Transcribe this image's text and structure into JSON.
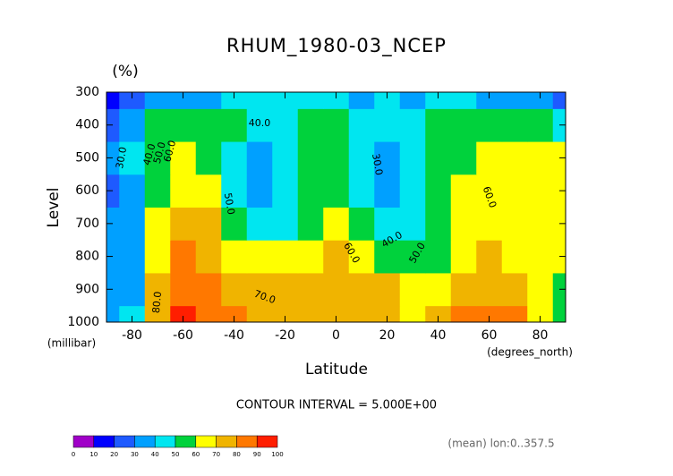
{
  "chart_data": {
    "type": "contour",
    "title": "RHUM_1980-03_NCEP",
    "units": "(%)",
    "y_label": "Level",
    "y_units": "(millibar)",
    "x_label": "Latitude",
    "x_units": "(degrees_north)",
    "contour_interval": "CONTOUR INTERVAL = 5.000E+00",
    "footnote": "(mean) lon:0..357.5",
    "x": [
      -90,
      -80,
      -70,
      -60,
      -50,
      -40,
      -30,
      -20,
      -10,
      0,
      10,
      20,
      30,
      40,
      50,
      60,
      70,
      80,
      90
    ],
    "y": [
      1000,
      900,
      800,
      700,
      600,
      500,
      400,
      300
    ],
    "z": [
      [
        30,
        40,
        75,
        92,
        85,
        80,
        75,
        75,
        75,
        72,
        72,
        70,
        65,
        70,
        82,
        85,
        80,
        65,
        50
      ],
      [
        30,
        35,
        70,
        88,
        83,
        75,
        72,
        72,
        75,
        75,
        72,
        70,
        62,
        68,
        78,
        78,
        75,
        68,
        55
      ],
      [
        30,
        35,
        62,
        80,
        78,
        68,
        60,
        60,
        65,
        72,
        62,
        55,
        50,
        58,
        65,
        70,
        68,
        65,
        60
      ],
      [
        30,
        35,
        60,
        75,
        72,
        58,
        45,
        45,
        52,
        62,
        52,
        42,
        48,
        55,
        62,
        62,
        65,
        62,
        60
      ],
      [
        28,
        35,
        58,
        68,
        62,
        45,
        38,
        40,
        50,
        57,
        45,
        35,
        45,
        55,
        60,
        60,
        62,
        65,
        62
      ],
      [
        30,
        40,
        55,
        62,
        55,
        42,
        38,
        42,
        50,
        55,
        42,
        35,
        45,
        55,
        58,
        60,
        62,
        64,
        62
      ],
      [
        22,
        35,
        50,
        55,
        55,
        50,
        45,
        45,
        50,
        52,
        45,
        40,
        48,
        55,
        55,
        50,
        52,
        50,
        48
      ],
      [
        10,
        20,
        30,
        32,
        35,
        40,
        42,
        42,
        40,
        40,
        38,
        40,
        35,
        40,
        40,
        38,
        35,
        32,
        28
      ]
    ],
    "levels": [
      0,
      10,
      20,
      30,
      40,
      50,
      60,
      70,
      80,
      90,
      100
    ],
    "colors": [
      "#a000c8",
      "#0000ff",
      "#1e5aff",
      "#00a0ff",
      "#00e6f0",
      "#00d23c",
      "#ffff00",
      "#f0b400",
      "#ff7800",
      "#ff1e00"
    ],
    "xlim": [
      -90,
      90
    ],
    "ylim": [
      1000,
      300
    ],
    "xticks": [
      -80,
      -60,
      -40,
      -20,
      0,
      20,
      40,
      60,
      80
    ],
    "yticks": [
      1000,
      900,
      800,
      700,
      600,
      500,
      400,
      300
    ],
    "contour_labels": [
      {
        "value": 30,
        "label": "30.0"
      },
      {
        "value": 40,
        "label": "40.0"
      },
      {
        "value": 50,
        "label": "50.0"
      },
      {
        "value": 60,
        "label": "60.0"
      },
      {
        "value": 40,
        "label": "40.0"
      },
      {
        "value": 50,
        "label": "50.0"
      },
      {
        "value": 30,
        "label": "30.0"
      },
      {
        "value": 60,
        "label": "60.0"
      },
      {
        "value": 40,
        "label": "40.0"
      },
      {
        "value": 50,
        "label": "50.0"
      },
      {
        "value": 60,
        "label": "60.0"
      },
      {
        "value": 70,
        "label": "70.0"
      },
      {
        "value": 80,
        "label": "80.0"
      }
    ]
  }
}
